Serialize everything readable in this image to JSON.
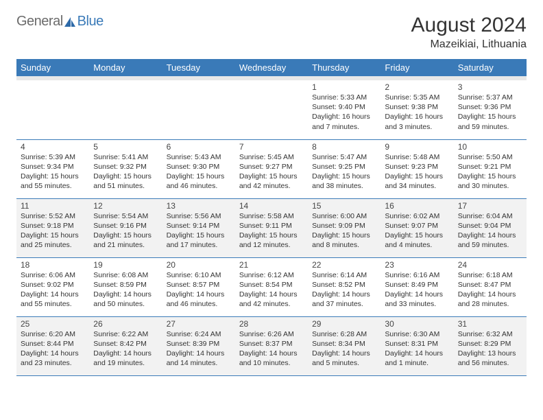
{
  "brand": {
    "part1": "General",
    "part2": "Blue"
  },
  "title": "August 2024",
  "location": "Mazeikiai, Lithuania",
  "colors": {
    "header_bg": "#3a7ab8",
    "header_text": "#ffffff",
    "rule": "#3a7ab8",
    "shade": "#f2f2f2",
    "sep": "#e8e8e8",
    "text": "#333333",
    "logo_gray": "#6b6b6b",
    "logo_blue": "#3a7ab8"
  },
  "dow": [
    "Sunday",
    "Monday",
    "Tuesday",
    "Wednesday",
    "Thursday",
    "Friday",
    "Saturday"
  ],
  "weeks": [
    {
      "shade": false,
      "days": [
        null,
        null,
        null,
        null,
        {
          "n": "1",
          "sr": "5:33 AM",
          "ss": "9:40 PM",
          "d": "16 hours and 7 minutes."
        },
        {
          "n": "2",
          "sr": "5:35 AM",
          "ss": "9:38 PM",
          "d": "16 hours and 3 minutes."
        },
        {
          "n": "3",
          "sr": "5:37 AM",
          "ss": "9:36 PM",
          "d": "15 hours and 59 minutes."
        }
      ]
    },
    {
      "shade": false,
      "days": [
        {
          "n": "4",
          "sr": "5:39 AM",
          "ss": "9:34 PM",
          "d": "15 hours and 55 minutes."
        },
        {
          "n": "5",
          "sr": "5:41 AM",
          "ss": "9:32 PM",
          "d": "15 hours and 51 minutes."
        },
        {
          "n": "6",
          "sr": "5:43 AM",
          "ss": "9:30 PM",
          "d": "15 hours and 46 minutes."
        },
        {
          "n": "7",
          "sr": "5:45 AM",
          "ss": "9:27 PM",
          "d": "15 hours and 42 minutes."
        },
        {
          "n": "8",
          "sr": "5:47 AM",
          "ss": "9:25 PM",
          "d": "15 hours and 38 minutes."
        },
        {
          "n": "9",
          "sr": "5:48 AM",
          "ss": "9:23 PM",
          "d": "15 hours and 34 minutes."
        },
        {
          "n": "10",
          "sr": "5:50 AM",
          "ss": "9:21 PM",
          "d": "15 hours and 30 minutes."
        }
      ]
    },
    {
      "shade": true,
      "days": [
        {
          "n": "11",
          "sr": "5:52 AM",
          "ss": "9:18 PM",
          "d": "15 hours and 25 minutes."
        },
        {
          "n": "12",
          "sr": "5:54 AM",
          "ss": "9:16 PM",
          "d": "15 hours and 21 minutes."
        },
        {
          "n": "13",
          "sr": "5:56 AM",
          "ss": "9:14 PM",
          "d": "15 hours and 17 minutes."
        },
        {
          "n": "14",
          "sr": "5:58 AM",
          "ss": "9:11 PM",
          "d": "15 hours and 12 minutes."
        },
        {
          "n": "15",
          "sr": "6:00 AM",
          "ss": "9:09 PM",
          "d": "15 hours and 8 minutes."
        },
        {
          "n": "16",
          "sr": "6:02 AM",
          "ss": "9:07 PM",
          "d": "15 hours and 4 minutes."
        },
        {
          "n": "17",
          "sr": "6:04 AM",
          "ss": "9:04 PM",
          "d": "14 hours and 59 minutes."
        }
      ]
    },
    {
      "shade": false,
      "days": [
        {
          "n": "18",
          "sr": "6:06 AM",
          "ss": "9:02 PM",
          "d": "14 hours and 55 minutes."
        },
        {
          "n": "19",
          "sr": "6:08 AM",
          "ss": "8:59 PM",
          "d": "14 hours and 50 minutes."
        },
        {
          "n": "20",
          "sr": "6:10 AM",
          "ss": "8:57 PM",
          "d": "14 hours and 46 minutes."
        },
        {
          "n": "21",
          "sr": "6:12 AM",
          "ss": "8:54 PM",
          "d": "14 hours and 42 minutes."
        },
        {
          "n": "22",
          "sr": "6:14 AM",
          "ss": "8:52 PM",
          "d": "14 hours and 37 minutes."
        },
        {
          "n": "23",
          "sr": "6:16 AM",
          "ss": "8:49 PM",
          "d": "14 hours and 33 minutes."
        },
        {
          "n": "24",
          "sr": "6:18 AM",
          "ss": "8:47 PM",
          "d": "14 hours and 28 minutes."
        }
      ]
    },
    {
      "shade": true,
      "days": [
        {
          "n": "25",
          "sr": "6:20 AM",
          "ss": "8:44 PM",
          "d": "14 hours and 23 minutes."
        },
        {
          "n": "26",
          "sr": "6:22 AM",
          "ss": "8:42 PM",
          "d": "14 hours and 19 minutes."
        },
        {
          "n": "27",
          "sr": "6:24 AM",
          "ss": "8:39 PM",
          "d": "14 hours and 14 minutes."
        },
        {
          "n": "28",
          "sr": "6:26 AM",
          "ss": "8:37 PM",
          "d": "14 hours and 10 minutes."
        },
        {
          "n": "29",
          "sr": "6:28 AM",
          "ss": "8:34 PM",
          "d": "14 hours and 5 minutes."
        },
        {
          "n": "30",
          "sr": "6:30 AM",
          "ss": "8:31 PM",
          "d": "14 hours and 1 minute."
        },
        {
          "n": "31",
          "sr": "6:32 AM",
          "ss": "8:29 PM",
          "d": "13 hours and 56 minutes."
        }
      ]
    }
  ],
  "labels": {
    "sunrise": "Sunrise: ",
    "sunset": "Sunset: ",
    "daylight": "Daylight: "
  }
}
